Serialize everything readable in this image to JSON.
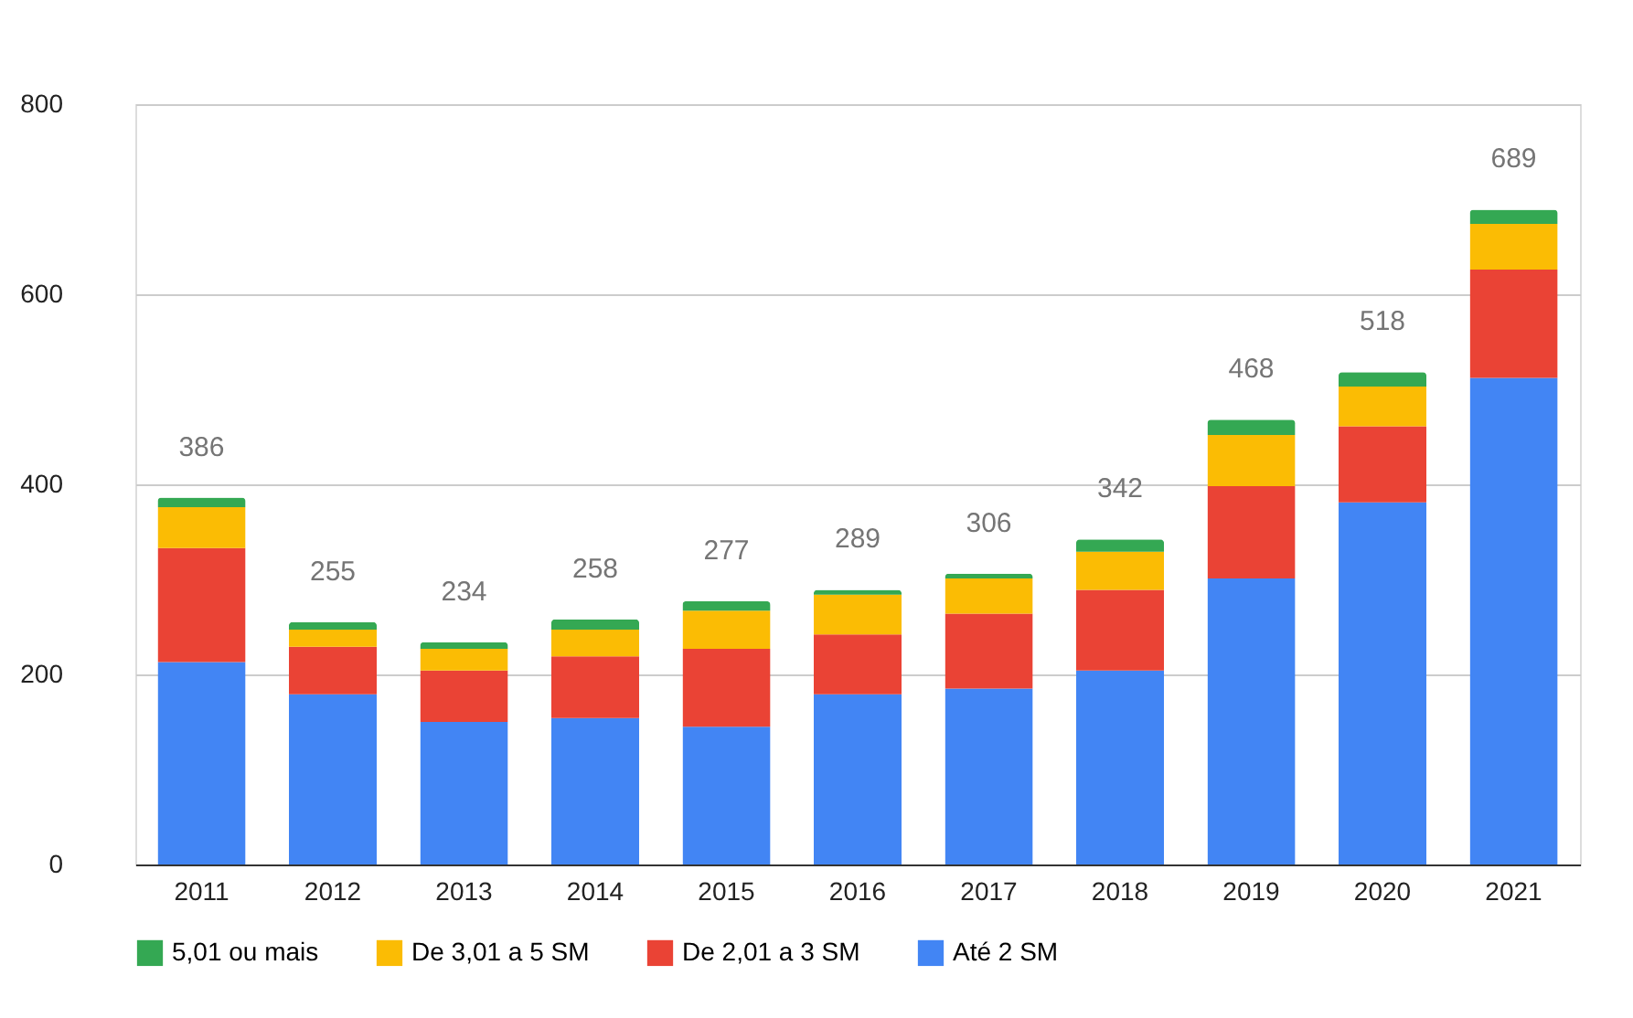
{
  "chart_data": {
    "type": "bar",
    "stacked": true,
    "categories": [
      "2011",
      "2012",
      "2013",
      "2014",
      "2015",
      "2016",
      "2017",
      "2018",
      "2019",
      "2020",
      "2021"
    ],
    "series": [
      {
        "name": "Até 2 SM",
        "color": "#4285f4",
        "values": [
          213,
          179,
          150,
          154,
          145,
          179,
          185,
          204,
          301,
          381,
          512
        ]
      },
      {
        "name": "De 2,01 a 3 SM",
        "color": "#ea4335",
        "values": [
          120,
          50,
          54,
          65,
          82,
          63,
          79,
          85,
          97,
          80,
          114
        ]
      },
      {
        "name": "De 3,01 a 5 SM",
        "color": "#fbbc04",
        "values": [
          43,
          18,
          23,
          28,
          40,
          42,
          37,
          40,
          54,
          42,
          48
        ]
      },
      {
        "name": "5,01 ou mais",
        "color": "#34a853",
        "values": [
          10,
          8,
          7,
          11,
          10,
          5,
          5,
          13,
          16,
          15,
          15
        ]
      }
    ],
    "totals": [
      "386",
      "255",
      "234",
      "258",
      "277",
      "289",
      "306",
      "342",
      "468",
      "518",
      "689"
    ],
    "ylim": [
      0,
      800
    ],
    "yticks": [
      0,
      200,
      400,
      600,
      800
    ],
    "grid": "y",
    "legend": "bottom"
  }
}
